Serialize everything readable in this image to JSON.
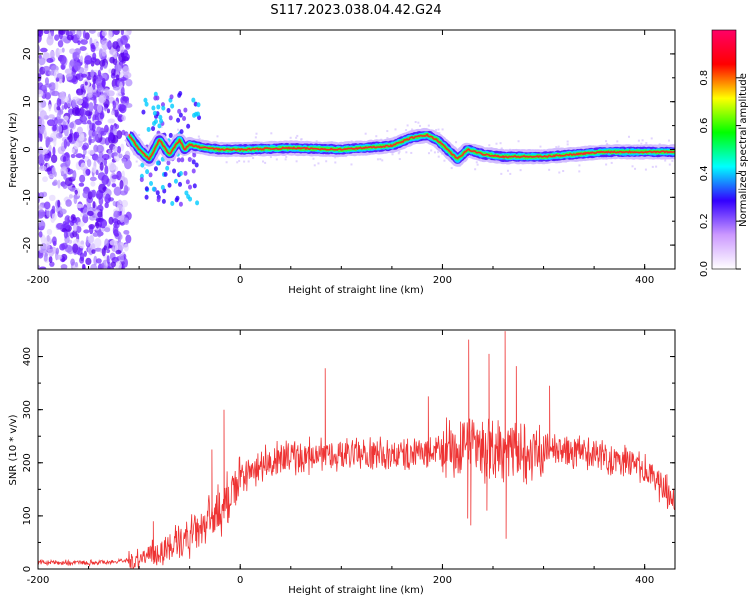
{
  "title": "S117.2023.038.04.42.G24",
  "colors": {
    "snr_line": "#ee3333",
    "frame": "#000000",
    "background": "#ffffff"
  },
  "colorbar": {
    "label": "Normalized spectral amplitude",
    "range": [
      0,
      1
    ],
    "ticks": [
      "0.0",
      "0.2",
      "0.4",
      "0.6",
      "0.8"
    ],
    "stops": [
      "#ffffff",
      "#cc99ff",
      "#3300ff",
      "#00ffff",
      "#00ff00",
      "#ffff00",
      "#ff0000",
      "#ff0066"
    ]
  },
  "chart_data": [
    {
      "type": "heatmap",
      "xlabel": "Height of straight line (km)",
      "ylabel": "Frequency (Hz)",
      "xlim": [
        -200,
        430
      ],
      "ylim": [
        -25,
        25
      ],
      "xticks": [
        "-200",
        "0",
        "200",
        "400"
      ],
      "yticks": [
        "20",
        "10",
        "0",
        "-10",
        "-20"
      ],
      "ridge": {
        "x": [
          -110,
          -100,
          -90,
          -80,
          -70,
          -60,
          -55,
          -50,
          -40,
          -20,
          0,
          50,
          100,
          150,
          170,
          185,
          195,
          205,
          215,
          225,
          240,
          260,
          280,
          300,
          330,
          360,
          400,
          430
        ],
        "freq": [
          3,
          0,
          -2,
          2,
          -1,
          2,
          0,
          1,
          0.5,
          0,
          0,
          0.3,
          0,
          0.8,
          2.5,
          3,
          2,
          0,
          -2,
          0,
          -1,
          -1.5,
          -1.5,
          -1.5,
          -1,
          -0.5,
          -0.5,
          -0.5
        ]
      }
    },
    {
      "type": "line",
      "xlabel": "Height of straight line (km)",
      "ylabel": "SNR (10 * v/v)",
      "xlim": [
        -200,
        430
      ],
      "ylim": [
        0,
        450
      ],
      "xticks": [
        "-200",
        "0",
        "200",
        "400"
      ],
      "yticks": [
        "400",
        "300",
        "200",
        "100",
        "0"
      ],
      "envelope": {
        "x": [
          -200,
          -150,
          -110,
          -90,
          -70,
          -50,
          -30,
          -20,
          -10,
          0,
          20,
          50,
          100,
          150,
          200,
          250,
          300,
          350,
          380,
          400,
          415,
          430
        ],
        "y": [
          12,
          12,
          15,
          25,
          40,
          60,
          90,
          110,
          140,
          165,
          195,
          210,
          215,
          215,
          220,
          225,
          225,
          215,
          205,
          185,
          160,
          130
        ]
      },
      "spikes": [
        {
          "x": -86,
          "y": 90
        },
        {
          "x": -28,
          "y": 225
        },
        {
          "x": -16,
          "y": 300
        },
        {
          "x": 84,
          "y": 378
        },
        {
          "x": 186,
          "y": 325
        },
        {
          "x": 226,
          "y": 432
        },
        {
          "x": 246,
          "y": 405
        },
        {
          "x": 262,
          "y": 448
        },
        {
          "x": 273,
          "y": 382
        },
        {
          "x": 306,
          "y": 345
        }
      ],
      "dips": [
        {
          "x": 225,
          "y": 95
        },
        {
          "x": 228,
          "y": 82
        },
        {
          "x": 263,
          "y": 57
        },
        {
          "x": 244,
          "y": 110
        }
      ]
    }
  ]
}
